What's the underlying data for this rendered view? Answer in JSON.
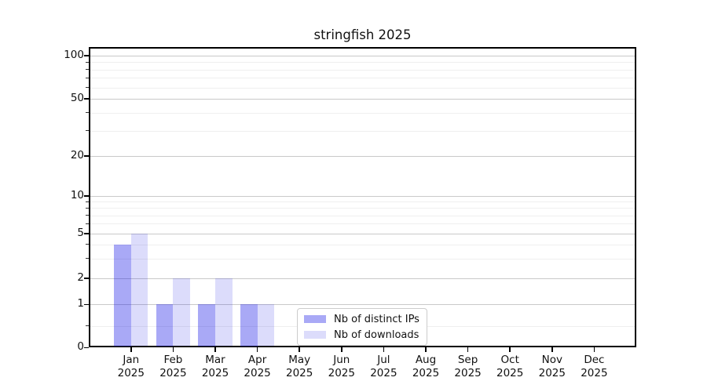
{
  "title": "stringfish 2025",
  "chart_data": {
    "type": "bar",
    "title": "stringfish 2025",
    "categories": [
      "Jan",
      "Feb",
      "Mar",
      "Apr",
      "May",
      "Jun",
      "Jul",
      "Aug",
      "Sep",
      "Oct",
      "Nov",
      "Dec"
    ],
    "year": "2025",
    "series": [
      {
        "name": "Nb of distinct IPs",
        "color": "rgba(10,10,230,0.35)",
        "values": [
          4,
          1,
          1,
          1,
          0,
          0,
          0,
          0,
          0,
          0,
          0,
          0
        ]
      },
      {
        "name": "Nb of downloads",
        "color": "rgba(10,10,230,0.14)",
        "values": [
          5,
          2,
          2,
          1,
          0,
          0,
          0,
          0,
          0,
          0,
          0,
          0
        ]
      }
    ],
    "xlabel": "",
    "ylabel": "",
    "y_ticks": [
      0,
      1,
      2,
      5,
      10,
      20,
      50,
      100
    ],
    "y_minor_gridlines": [
      0.5,
      3,
      4,
      6,
      7,
      8,
      9,
      30,
      40,
      60,
      70,
      80,
      90
    ],
    "ylim": [
      0,
      115
    ],
    "yscale": "symlog-like (linear 0-1, log-like above)",
    "grid": true,
    "legend": {
      "position": "lower-center",
      "entries": [
        "Nb of distinct IPs",
        "Nb of downloads"
      ]
    }
  },
  "colors": {
    "major_grid": "#c9c9c9",
    "minor_grid": "#efefef",
    "axis": "#000000",
    "background": "#ffffff"
  }
}
